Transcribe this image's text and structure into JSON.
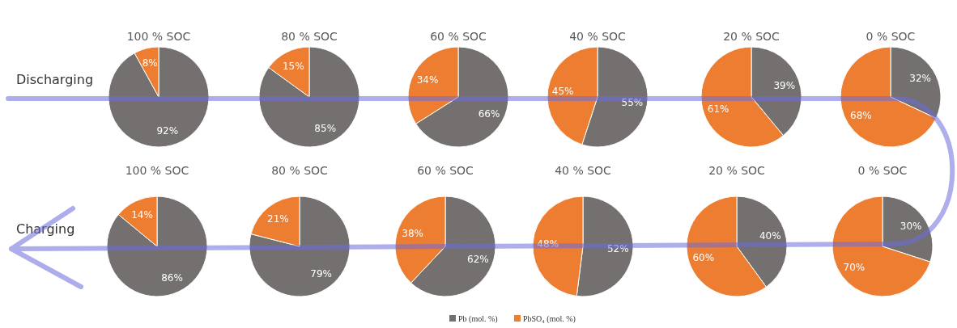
{
  "chart_data": [
    {
      "type": "pie",
      "title": "100 % SOC",
      "categories": [
        null,
        null
      ],
      "values": [
        92,
        8
      ],
      "value_labels": [
        "92%",
        "8%"
      ],
      "colors": [
        "#747070",
        "#ed7d31"
      ],
      "annotations": [
        "Discharging"
      ]
    },
    {
      "type": "pie",
      "title": "80 % SOC",
      "categories": [
        null,
        null
      ],
      "values": [
        85,
        15
      ],
      "value_labels": [
        "85%",
        "15%"
      ],
      "colors": [
        "#747070",
        "#ed7d31"
      ]
    },
    {
      "type": "pie",
      "title": "60 % SOC",
      "categories": [
        null,
        null
      ],
      "values": [
        66,
        34
      ],
      "value_labels": [
        "66%",
        "34%"
      ],
      "colors": [
        "#747070",
        "#ed7d31"
      ]
    },
    {
      "type": "pie",
      "title": "40 % SOC",
      "categories": [
        null,
        null
      ],
      "values": [
        55,
        45
      ],
      "value_labels": [
        "55%",
        "45%"
      ],
      "colors": [
        "#747070",
        "#ed7d31"
      ]
    },
    {
      "type": "pie",
      "title": "20 % SOC",
      "categories": [
        null,
        null
      ],
      "values": [
        39,
        61
      ],
      "value_labels": [
        "39%",
        "61%"
      ],
      "colors": [
        "#747070",
        "#ed7d31"
      ]
    },
    {
      "type": "pie",
      "title": "0 % SOC",
      "categories": [
        null,
        null
      ],
      "values": [
        32,
        68
      ],
      "value_labels": [
        "32%",
        "68%"
      ],
      "colors": [
        "#747070",
        "#ed7d31"
      ]
    },
    {
      "type": "pie",
      "title": "100 % SOC",
      "categories": [
        null,
        null
      ],
      "values": [
        86,
        14
      ],
      "value_labels": [
        "86%",
        "14%"
      ],
      "colors": [
        "#747070",
        "#ed7d31"
      ],
      "annotations": [
        "Charging"
      ]
    },
    {
      "type": "pie",
      "title": "80 % SOC",
      "categories": [
        null,
        null
      ],
      "values": [
        79,
        21
      ],
      "value_labels": [
        "79%",
        "21%"
      ],
      "colors": [
        "#747070",
        "#ed7d31"
      ]
    },
    {
      "type": "pie",
      "title": "60 % SOC",
      "categories": [
        null,
        null
      ],
      "values": [
        62,
        38
      ],
      "value_labels": [
        "62%",
        "38%"
      ],
      "colors": [
        "#747070",
        "#ed7d31"
      ]
    },
    {
      "type": "pie",
      "title": "40 % SOC",
      "categories": [
        null,
        null
      ],
      "values": [
        52,
        48
      ],
      "value_labels": [
        "52%",
        "48%"
      ],
      "colors": [
        "#747070",
        "#ed7d31"
      ]
    },
    {
      "type": "pie",
      "title": "20 % SOC",
      "categories": [
        null,
        null
      ],
      "values": [
        40,
        60
      ],
      "value_labels": [
        "40%",
        "60%"
      ],
      "colors": [
        "#747070",
        "#ed7d31"
      ]
    },
    {
      "type": "pie",
      "title": "0 % SOC",
      "categories": [
        "Pb (mol. %)",
        "PbSO₄ (mol. %)"
      ],
      "values": [
        30,
        70
      ],
      "value_labels": [
        "30%",
        "70%"
      ],
      "colors": [
        "#747070",
        "#ed7d31"
      ],
      "legend": "bottom"
    }
  ]
}
